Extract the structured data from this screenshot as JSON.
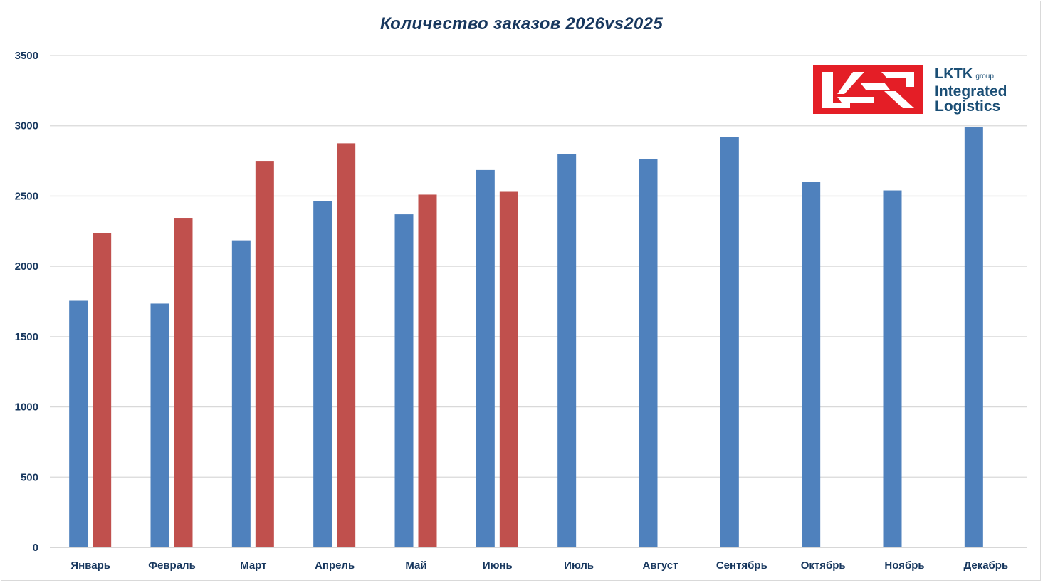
{
  "chart_data": {
    "type": "bar",
    "title": "Количество заказов 2026vs2025",
    "xlabel": "",
    "ylabel": "",
    "ylim": [
      0,
      3500
    ],
    "yticks": [
      0,
      500,
      1000,
      1500,
      2000,
      2500,
      3000,
      3500
    ],
    "grid": true,
    "legend": "none",
    "categories": [
      "Январь",
      "Февраль",
      "Март",
      "Апрель",
      "Май",
      "Июнь",
      "Июль",
      "Август",
      "Сентябрь",
      "Октябрь",
      "Ноябрь",
      "Декабрь"
    ],
    "series": [
      {
        "color": "#4f81bd",
        "values": [
          1755,
          1735,
          2185,
          2465,
          2370,
          2685,
          2800,
          2765,
          2920,
          2600,
          2540,
          2990
        ]
      },
      {
        "color": "#c0504d",
        "values": [
          2235,
          2345,
          2750,
          2875,
          2510,
          2530,
          null,
          null,
          null,
          null,
          null,
          null
        ]
      }
    ]
  },
  "logo": {
    "line1": "LKTK",
    "line1_small": "group",
    "line2": "Integrated",
    "line3": "Logistics",
    "mark_color": "#e41e26",
    "text_color": "#1a4e75"
  }
}
